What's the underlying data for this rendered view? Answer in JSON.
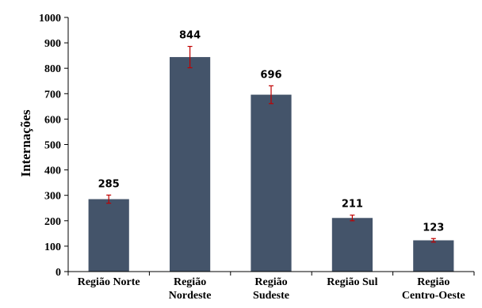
{
  "chart_data": {
    "type": "bar",
    "title": "",
    "xlabel": "",
    "ylabel": "Internações",
    "ylim": [
      0,
      1000
    ],
    "yticks": [
      0,
      100,
      200,
      300,
      400,
      500,
      600,
      700,
      800,
      900,
      1000
    ],
    "grid": false,
    "legend": "none",
    "bar_color": "#44546a",
    "error_color": "#c00000",
    "categories": [
      [
        "Região Norte"
      ],
      [
        "Região",
        "Nordeste"
      ],
      [
        "Região",
        "Sudeste"
      ],
      [
        "Região Sul"
      ],
      [
        "Região",
        "Centro-Oeste"
      ]
    ],
    "values": [
      285,
      844,
      696,
      211,
      123
    ],
    "data_labels": [
      "285",
      "844",
      "696",
      "211",
      "123"
    ],
    "error": [
      16,
      42,
      35,
      11,
      7
    ]
  }
}
